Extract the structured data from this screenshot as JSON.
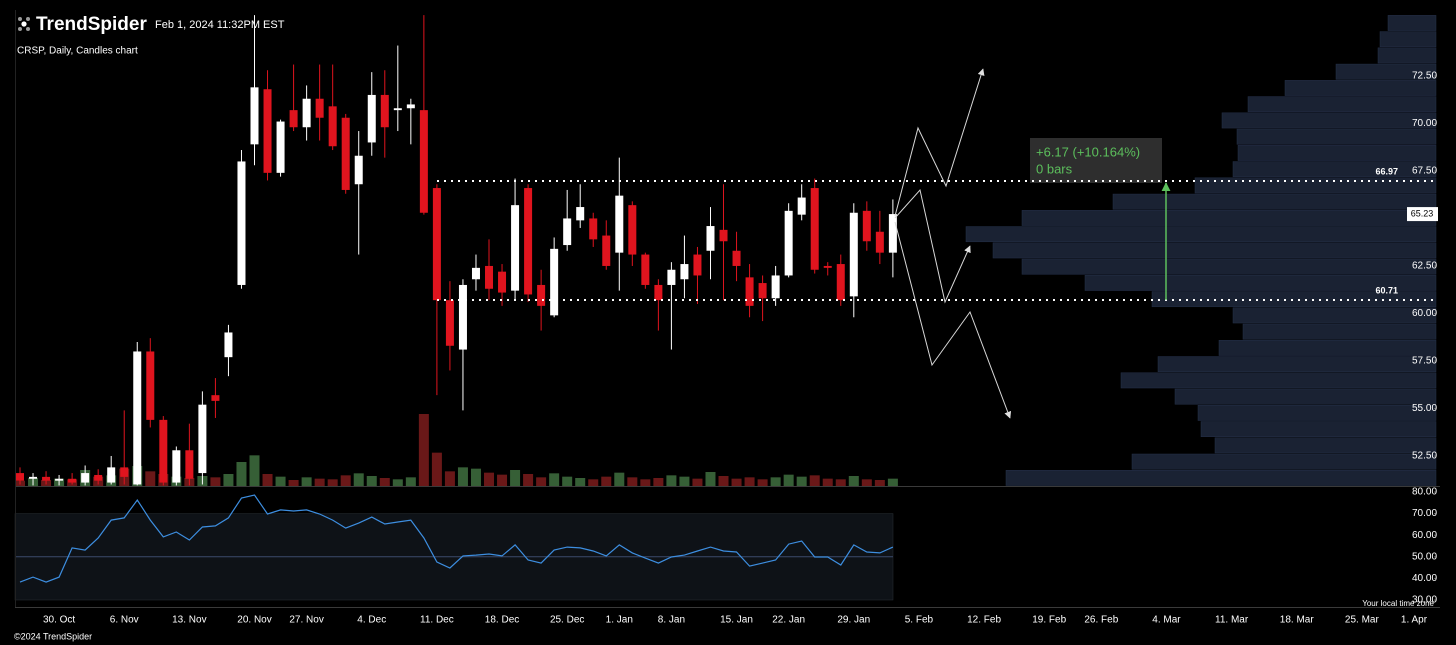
{
  "header": {
    "brand": "TrendSpider",
    "timestamp": "Feb 1, 2024 11:32PM EST",
    "subtitle": "CRSP, Daily, Candles chart"
  },
  "footer": {
    "copyright": "©2024 TrendSpider",
    "timezone_note": "Your local time zone"
  },
  "chart_data": {
    "type": "candlestick",
    "categories": [
      null,
      null,
      null,
      "30. Oct",
      null,
      null,
      null,
      null,
      "6. Nov",
      null,
      null,
      null,
      null,
      "13. Nov",
      null,
      null,
      null,
      null,
      "20. Nov",
      null,
      null,
      null,
      "27. Nov",
      null,
      null,
      null,
      null,
      "4. Dec",
      null,
      null,
      null,
      null,
      "11. Dec",
      null,
      null,
      null,
      null,
      "18. Dec",
      null,
      null,
      null,
      null,
      "25. Dec",
      null,
      null,
      null,
      "1. Jan",
      null,
      null,
      null,
      "8. Jan",
      null,
      null,
      null,
      null,
      "15. Jan",
      null,
      null,
      null,
      "22. Jan",
      null,
      null,
      null,
      null,
      "29. Jan",
      null,
      null,
      null,
      null,
      "5. Feb",
      null,
      null,
      null,
      null,
      "12. Feb",
      null,
      null,
      null,
      null,
      "19. Feb",
      null,
      null,
      null,
      "26. Feb",
      null,
      null,
      null,
      null,
      "4. Mar",
      null,
      null,
      null,
      null,
      "11. Mar",
      null,
      null,
      null,
      null,
      "18. Mar",
      null,
      null,
      null,
      null,
      "25. Mar",
      null,
      null,
      null,
      "1. Apr"
    ],
    "open": [
      51.6,
      51.3,
      51.4,
      51.2,
      51.3,
      51.1,
      51.5,
      51.1,
      51.9,
      51.0,
      58.0,
      54.4,
      51.1,
      52.8,
      51.6,
      55.7,
      57.7,
      61.5,
      68.9,
      71.8,
      67.4,
      70.7,
      69.8,
      71.3,
      70.9,
      70.3,
      66.8,
      69.0,
      71.5,
      70.7,
      70.8,
      70.7,
      66.6,
      60.7,
      58.1,
      61.8,
      62.5,
      62.2,
      61.2,
      66.6,
      61.5,
      59.9,
      63.6,
      64.9,
      65.0,
      64.1,
      63.2,
      65.7,
      63.1,
      61.5,
      61.5,
      61.8,
      63.1,
      63.3,
      64.4,
      63.3,
      61.9,
      61.6,
      60.8,
      62.0,
      65.2,
      66.6,
      62.5,
      62.6,
      60.9,
      65.4,
      64.3,
      63.2,
      null,
      null,
      null,
      null,
      null,
      null,
      null,
      null,
      null,
      null,
      null,
      null,
      null,
      null,
      null,
      null,
      null,
      null,
      null,
      null,
      null,
      null,
      null,
      null,
      null,
      null,
      null,
      null,
      null,
      null,
      null,
      null,
      null,
      null,
      null,
      null,
      null,
      null,
      null,
      null
    ],
    "high": [
      51.9,
      51.6,
      51.7,
      51.5,
      51.6,
      52.0,
      51.8,
      52.5,
      54.9,
      58.5,
      58.7,
      54.6,
      53.0,
      54.2,
      55.9,
      56.6,
      59.4,
      68.6,
      75.7,
      72.8,
      70.2,
      73.1,
      72.0,
      73.1,
      73.1,
      70.5,
      69.6,
      72.7,
      72.8,
      74.1,
      71.3,
      75.7,
      66.8,
      61.7,
      61.8,
      63.1,
      63.9,
      62.6,
      67.1,
      66.8,
      62.3,
      64.0,
      66.5,
      66.8,
      65.3,
      64.9,
      68.2,
      65.9,
      63.2,
      61.8,
      62.7,
      64.1,
      63.5,
      65.6,
      66.8,
      64.3,
      62.6,
      62.0,
      62.5,
      65.8,
      66.8,
      67.1,
      62.7,
      63.1,
      65.8,
      65.9,
      65.4,
      66.0,
      null,
      null,
      null,
      null,
      null,
      null,
      null,
      null,
      null,
      null,
      null,
      null,
      null,
      null,
      null,
      null,
      null,
      null,
      null,
      null,
      null,
      null,
      null,
      null,
      null,
      null,
      null,
      null,
      null,
      null,
      null,
      null,
      null,
      null,
      null,
      null,
      null,
      null,
      null,
      null
    ],
    "low": [
      51.0,
      50.95,
      51.0,
      50.95,
      51.0,
      50.95,
      51.0,
      51.0,
      51.0,
      50.95,
      54.0,
      50.95,
      50.95,
      50.95,
      51.0,
      54.5,
      56.7,
      61.3,
      67.8,
      67.0,
      67.2,
      69.6,
      69.1,
      69.1,
      68.6,
      66.3,
      63.1,
      68.3,
      68.2,
      69.6,
      68.9,
      65.2,
      55.7,
      57.0,
      54.9,
      61.2,
      60.7,
      60.4,
      60.7,
      60.6,
      59.1,
      59.8,
      63.3,
      64.5,
      63.5,
      62.3,
      61.2,
      62.5,
      61.3,
      59.1,
      58.1,
      60.8,
      60.5,
      61.8,
      60.7,
      61.7,
      59.8,
      59.6,
      60.4,
      61.9,
      64.9,
      62.1,
      62.0,
      60.4,
      59.8,
      63.3,
      62.6,
      61.9,
      null,
      null,
      null,
      null,
      null,
      null,
      null,
      null,
      null,
      null,
      null,
      null,
      null,
      null,
      null,
      null,
      null,
      null,
      null,
      null,
      null,
      null,
      null,
      null,
      null,
      null,
      null,
      null,
      null,
      null,
      null,
      null,
      null,
      null,
      null,
      null,
      null,
      null,
      null,
      null
    ],
    "close": [
      51.2,
      51.4,
      51.2,
      51.3,
      51.1,
      51.6,
      51.2,
      51.9,
      51.4,
      58.0,
      54.4,
      51.1,
      52.8,
      51.3,
      55.2,
      55.4,
      59.0,
      68.0,
      71.9,
      67.4,
      70.1,
      69.8,
      71.3,
      70.3,
      68.8,
      66.5,
      68.3,
      71.5,
      69.8,
      70.8,
      71.0,
      65.3,
      60.7,
      58.3,
      61.5,
      62.4,
      61.3,
      61.1,
      65.7,
      61.0,
      60.4,
      63.4,
      65.0,
      65.6,
      63.9,
      62.5,
      66.2,
      63.1,
      61.5,
      60.7,
      62.3,
      62.6,
      62.0,
      64.6,
      63.8,
      62.5,
      60.4,
      60.8,
      62.0,
      65.4,
      66.1,
      62.3,
      62.4,
      60.7,
      65.3,
      63.8,
      63.2,
      65.23,
      null,
      null,
      null,
      null,
      null,
      null,
      null,
      null,
      null,
      null,
      null,
      null,
      null,
      null,
      null,
      null,
      null,
      null,
      null,
      null,
      null,
      null,
      null,
      null,
      null,
      null,
      null,
      null,
      null,
      null,
      null,
      null,
      null,
      null,
      null,
      null,
      null,
      null,
      null,
      null
    ],
    "volume": [
      0.8,
      1.2,
      0.9,
      1.1,
      1.0,
      2.4,
      1.4,
      1.6,
      2.6,
      3.0,
      2.2,
      1.8,
      1.4,
      1.2,
      1.5,
      1.3,
      1.8,
      3.6,
      4.6,
      1.8,
      1.4,
      0.9,
      1.3,
      1.1,
      1.0,
      1.6,
      1.9,
      1.5,
      1.2,
      1.0,
      1.3,
      10.8,
      5.0,
      2.2,
      2.8,
      2.6,
      2.0,
      1.7,
      2.4,
      1.8,
      1.3,
      1.9,
      1.4,
      1.2,
      1.0,
      1.4,
      2.0,
      1.3,
      1.0,
      1.2,
      1.6,
      1.4,
      1.1,
      2.1,
      1.5,
      1.1,
      1.3,
      1.0,
      1.3,
      1.7,
      1.4,
      1.6,
      1.1,
      1.0,
      1.5,
      1.0,
      0.9,
      1.1,
      null,
      null,
      null,
      null,
      null,
      null,
      null,
      null,
      null,
      null,
      null,
      null,
      null,
      null,
      null,
      null,
      null,
      null,
      null,
      null,
      null,
      null,
      null,
      null,
      null,
      null,
      null,
      null,
      null,
      null,
      null,
      null,
      null,
      null,
      null,
      null,
      null,
      null,
      null,
      null
    ],
    "up_color": "#ffffff",
    "down_color": "#e0141e",
    "volume_up_color": "#365f36",
    "volume_down_color": "#6a1818",
    "ylim": [
      50.92,
      75.97
    ],
    "yticks": [
      {
        "value": 52.5,
        "label": "52.50"
      },
      {
        "value": 55,
        "label": "55.00"
      },
      {
        "value": 57.5,
        "label": "57.50"
      },
      {
        "value": 60,
        "label": "60.00"
      },
      {
        "value": 62.5,
        "label": "62.50"
      },
      {
        "value": 65,
        "label": "65.00"
      },
      {
        "value": 67.5,
        "label": "67.50"
      },
      {
        "value": 70,
        "label": "70.00"
      },
      {
        "value": 72.5,
        "label": "72.50"
      }
    ],
    "levels": [
      66.97,
      60.71
    ],
    "last_price": 65.23,
    "measurement": {
      "change": "+6.17 (+10.164%)",
      "bars": "0 bars",
      "color": "#5cbf5c"
    },
    "volume_profile": {
      "color": "#1a2233",
      "bins": [
        50.92,
        51.775,
        52.63,
        53.485,
        54.34,
        55.195,
        56.05,
        56.905,
        57.76,
        58.615,
        59.47,
        60.325,
        61.18,
        62.035,
        62.89,
        63.745,
        64.6,
        65.455,
        66.31,
        67.165,
        68.02,
        68.875,
        69.73,
        70.585,
        71.44,
        72.295,
        73.15,
        74.005,
        74.86,
        75.715
      ],
      "values": [
        430,
        304,
        221,
        235,
        238,
        261,
        315,
        278,
        217,
        193,
        203,
        284,
        351,
        414,
        443,
        470,
        414,
        323,
        241,
        203,
        198,
        199,
        214,
        188,
        151,
        100,
        58,
        56,
        48
      ]
    },
    "rsi": {
      "type": "line",
      "color": "#3d8ee0",
      "values": [
        38.3,
        40.6,
        38.3,
        40.6,
        54.1,
        53.1,
        58.7,
        67,
        68,
        76.3,
        67,
        59.2,
        61.5,
        57.8,
        63.8,
        64.3,
        68,
        77.2,
        78.6,
        69.8,
        71.7,
        71.2,
        71.7,
        69.8,
        67,
        63.3,
        65.6,
        68.4,
        65.2,
        66.1,
        67,
        58.7,
        47.6,
        44.8,
        50.4,
        50.8,
        51.3,
        50.4,
        55.5,
        48.5,
        47.1,
        53.1,
        54.5,
        54.1,
        52.7,
        50.4,
        55.5,
        51.8,
        49.4,
        47.1,
        49.9,
        50.8,
        52.7,
        54.5,
        52.7,
        52.2,
        45.7,
        47.1,
        48.5,
        55.9,
        57.3,
        49.9,
        49.9,
        46.2,
        55.5,
        52.2,
        51.8,
        54.5,
        null,
        null,
        null,
        null,
        null,
        null,
        null,
        null,
        null,
        null,
        null,
        null,
        null,
        null,
        null,
        null,
        null,
        null,
        null,
        null,
        null,
        null,
        null,
        null,
        null,
        null,
        null,
        null,
        null,
        null,
        null,
        null,
        null,
        null,
        null,
        null,
        null,
        null,
        null,
        null
      ],
      "ylim": [
        30,
        80
      ],
      "yticks": [
        {
          "value": 30,
          "label": "30.00"
        },
        {
          "value": 40,
          "label": "40.00"
        },
        {
          "value": 50,
          "label": "50.00"
        },
        {
          "value": 60,
          "label": "60.00"
        },
        {
          "value": 70,
          "label": "70.00"
        },
        {
          "value": 80,
          "label": "80.00"
        }
      ],
      "band": [
        30,
        70
      ],
      "midline": 50
    }
  }
}
